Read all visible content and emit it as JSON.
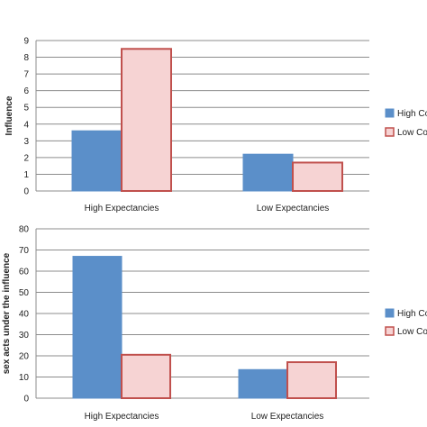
{
  "chart_data": [
    {
      "type": "bar",
      "categories": [
        "High Expectancies",
        "Low Expectancies"
      ],
      "series": [
        {
          "name": "High Co",
          "values": [
            3.6,
            2.2
          ],
          "color": "#5b8fc9",
          "fill": "solid"
        },
        {
          "name": "Low Co",
          "values": [
            8.5,
            1.7
          ],
          "color": "#c0504d",
          "fill": "#f6d3d3"
        }
      ],
      "ylabel": "Influence",
      "ylim": [
        0,
        9
      ],
      "yticks": [
        "0",
        "1",
        "2",
        "3",
        "4",
        "5",
        "6",
        "7",
        "8",
        "9"
      ],
      "grid": true,
      "legend": "right"
    },
    {
      "type": "bar",
      "categories": [
        "High Expectancies",
        "Low Expectancies"
      ],
      "series": [
        {
          "name": "High Co",
          "values": [
            67,
            13.5
          ],
          "color": "#5b8fc9",
          "fill": "solid"
        },
        {
          "name": "Low Co",
          "values": [
            20.5,
            17
          ],
          "color": "#c0504d",
          "fill": "#f6d3d3"
        }
      ],
      "ylabel": "sex acts under the influence",
      "ylim": [
        0,
        80
      ],
      "yticks": [
        "0",
        "10",
        "20",
        "30",
        "40",
        "50",
        "60",
        "70",
        "80"
      ],
      "grid": true,
      "legend": "right"
    }
  ]
}
